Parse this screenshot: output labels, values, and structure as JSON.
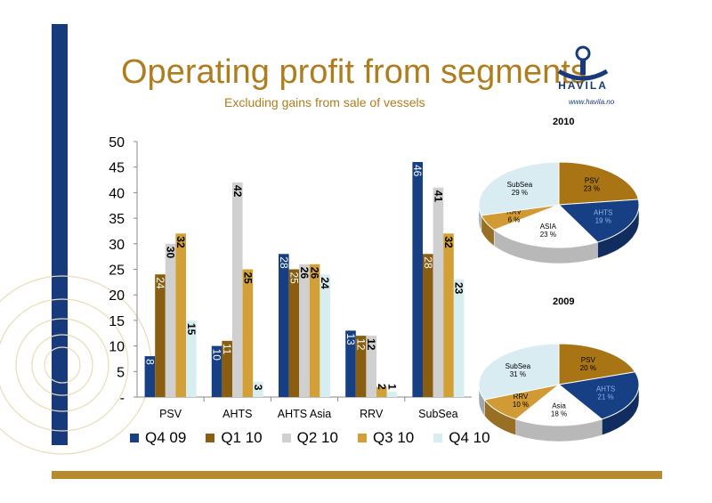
{
  "slide": {
    "title": "Operating profit from segments",
    "subtitle": "Excluding gains from sale of vessels",
    "logo_text": "HAVILA",
    "logo_web": "www.havila.no"
  },
  "colors": {
    "accent_gold": "#b07d1e",
    "accent_navy": "#173a7c"
  },
  "chart_data": [
    {
      "type": "bar",
      "categories": [
        "PSV",
        "AHTS",
        "AHTS Asia",
        "RRV",
        "SubSea"
      ],
      "series": [
        {
          "name": "Q4 09",
          "color": "#173f84",
          "values": [
            8,
            10,
            28,
            13,
            46
          ]
        },
        {
          "name": "Q1 10",
          "color": "#8a5e10",
          "values": [
            24,
            11,
            25,
            12,
            28
          ]
        },
        {
          "name": "Q2 10",
          "color": "#d0d0d0",
          "values": [
            30,
            42,
            26,
            12,
            41
          ]
        },
        {
          "name": "Q3 10",
          "color": "#d2a036",
          "values": [
            32,
            25,
            26,
            2,
            32
          ]
        },
        {
          "name": "Q4 10",
          "color": "#d6eef0",
          "values": [
            15,
            3,
            24,
            1,
            23
          ]
        }
      ],
      "yticks": [
        "50",
        "45",
        "40",
        "35",
        "30",
        "25",
        "20",
        "15",
        "10",
        "5",
        "-"
      ],
      "ylim": [
        0,
        50
      ],
      "legend_position": "bottom",
      "grid": false
    },
    {
      "type": "pie",
      "title": "2010",
      "slices": [
        {
          "label": "PSV",
          "value": 23,
          "display": "23 %",
          "color": "#a87414",
          "text_color": "#000000"
        },
        {
          "label": "AHTS",
          "value": 19,
          "display": "19 %",
          "color": "#173f84",
          "text_color": "#8fb4e6"
        },
        {
          "label": "ASIA",
          "value": 23,
          "display": "23 %",
          "color": "#ffffff",
          "text_color": "#000000"
        },
        {
          "label": "RRV",
          "value": 6,
          "display": "6 %",
          "color": "#d29a34",
          "text_color": "#000000"
        },
        {
          "label": "SubSea",
          "value": 29,
          "display": "29 %",
          "color": "#d8ecf2",
          "text_color": "#000000"
        }
      ]
    },
    {
      "type": "pie",
      "title": "2009",
      "slices": [
        {
          "label": "PSV",
          "value": 20,
          "display": "20 %",
          "color": "#a87414",
          "text_color": "#000000"
        },
        {
          "label": "AHTS",
          "value": 21,
          "display": "21 %",
          "color": "#173f84",
          "text_color": "#8fb4e6"
        },
        {
          "label": "Asia",
          "value": 18,
          "display": "18 %",
          "color": "#ffffff",
          "text_color": "#000000"
        },
        {
          "label": "RRV",
          "value": 10,
          "display": "10 %",
          "color": "#d29a34",
          "text_color": "#000000"
        },
        {
          "label": "SubSea",
          "value": 31,
          "display": "31 %",
          "color": "#d8ecf2",
          "text_color": "#000000"
        }
      ]
    }
  ]
}
